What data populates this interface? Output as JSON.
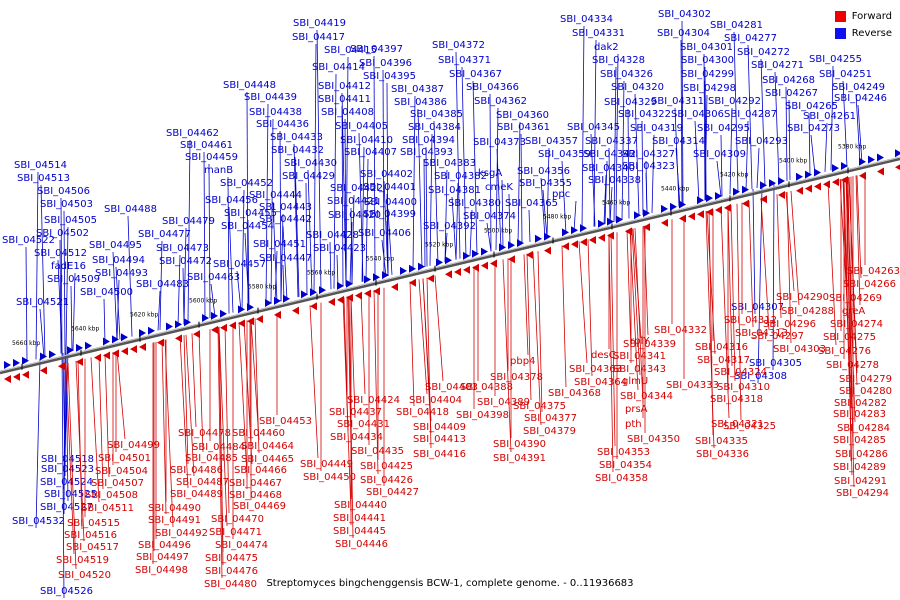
{
  "caption": "Streptomyces bingchenggensis BCW-1, complete genome. - 0..11936683",
  "legend": [
    {
      "label": "Forward",
      "color": "#ee0000"
    },
    {
      "label": "Reverse",
      "color": "#1010ee"
    }
  ],
  "colors": {
    "forward": "#d40000",
    "reverse": "#0000cc",
    "track": "#888888"
  },
  "axis": {
    "unit": "kbp",
    "ticks": [
      "5660 kbp",
      "5640 kbp",
      "5620 kbp",
      "5600 kbp",
      "5580 kbp",
      "5560 kbp",
      "5540 kbp",
      "5520 kbp",
      "5500 kbp",
      "5480 kbp",
      "5460 kbp",
      "5440 kbp",
      "5420 kbp",
      "5400 kbp",
      "5380 kbp"
    ]
  },
  "reverse_labels": [
    "SBI_04334",
    "SBI_04302",
    "SBI_04419",
    "SBI_04331",
    "SBI_04304",
    "SBI_04281",
    "SBI_04417",
    "SBI_04397",
    "SBI_04372",
    "dak2",
    "SBI_04301",
    "SBI_04277",
    "SBI_04415",
    "SBI_04396",
    "SBI_04371",
    "SBI_04328",
    "SBI_04300",
    "SBI_04272",
    "SBI_04414",
    "SBI_04395",
    "SBI_04367",
    "SBI_04326",
    "SBI_04299",
    "SBI_04271",
    "SBI_04255",
    "SBI_04448",
    "SBI_04412",
    "SBI_04387",
    "SBI_04366",
    "SBI_04320",
    "SBI_04298",
    "SBI_04268",
    "SBI_04251",
    "SBI_04439",
    "SBI_04411",
    "SBI_04386",
    "SBI_04362",
    "SBI_04329",
    "SBI_04311",
    "SBI_04292",
    "SBI_04267",
    "SBI_04249",
    "SBI_04438",
    "SBI_04408",
    "SBI_04385",
    "SBI_04360",
    "SBI_04322",
    "SBI_04306",
    "SBI_04287",
    "SBI_04265",
    "SBI_04246",
    "SBI_04462",
    "SBI_04436",
    "SBI_04405",
    "SBI_04384",
    "SBI_04361",
    "SBI_04345",
    "SBI_04319",
    "SBI_04295",
    "SBI_04273",
    "SBI_04261",
    "SBI_04461",
    "SBI_04433",
    "SBI_04410",
    "SBI_04394",
    "SBI_04373",
    "SBI_04357",
    "SBI_04337",
    "SBI_04314",
    "SBI_04293",
    "SBI_04459",
    "SBI_04432",
    "SBI_04407",
    "SBI_04393",
    "SBI_04359",
    "SBI_04342",
    "SBI_04327",
    "SBI_04309",
    "SBI_04514",
    "manB",
    "SBI_04430",
    "SBI_04383",
    "ksgA",
    "SBI_04356",
    "SBI_04340",
    "SBI_04323",
    "SBI_04513",
    "SBI_04452",
    "SBI_04429",
    "SBI_04402",
    "SBI_04382",
    "cmeK",
    "SBI_04355",
    "SBI_04338",
    "SBI_04506",
    "SBI_04444",
    "SBI_04422",
    "SBI_04401",
    "SBI_04381",
    "ppc",
    "SBI_04503",
    "SBI_04456",
    "SBI_04443",
    "SBI_04421",
    "SBI_04400",
    "SBI_04380",
    "SBI_04365",
    "SBI_04488",
    "SBI_04505",
    "SBI_04455",
    "SBI_04442",
    "SBI_04420",
    "SBI_04399",
    "SBI_04374",
    "SBI_04479",
    "SBI_04502",
    "SBI_04454",
    "SBI_04477",
    "SBI_04428",
    "SBI_04406",
    "SBI_04392",
    "SBI_04522",
    "SBI_04495",
    "SBI_04451",
    "SBI_04423",
    "SBI_04512",
    "SBI_04473",
    "SBI_04447",
    "SBI_04494",
    "fadE16",
    "SBI_04472",
    "SBI_04457",
    "SBI_04493",
    "SBI_04509",
    "SBI_04463",
    "SBI_04483",
    "SBI_04500",
    "SBI_04521",
    "SBI_04307",
    "SBI_04305",
    "SBI_04308",
    "SBI_04518",
    "SBI_04523",
    "SBI_04524",
    "SBI_04525",
    "SBI_04527",
    "SBI_04532",
    "SBI_04526"
  ],
  "forward_labels": [
    "SBI_04263",
    "SBI_04266",
    "SBI_04290",
    "SBI_04269",
    "greA",
    "SBI_04288",
    "SBI_04312",
    "SBI_04296",
    "SBI_04274",
    "SBI_04332",
    "SBI_04313",
    "SBI_04297",
    "SBI_04275",
    "rplY",
    "SBI_04339",
    "SBI_04316",
    "SBI_04303",
    "SBI_04276",
    "desC",
    "SBI_04341",
    "SBI_04317",
    "SBI_04278",
    "pbp4",
    "SBI_04363",
    "SBI_04343",
    "SBI_04324",
    "SBI_04279",
    "SBI_04378",
    "SBI_04364",
    "glmU",
    "SBI_04333",
    "SBI_04310",
    "SBI_04280",
    "SBI_04388",
    "SBI_04368",
    "SBI_04344",
    "SBI_04318",
    "SBI_04282",
    "SBI_04403",
    "SBI_04389",
    "SBI_04375",
    "prsA",
    "SBI_04283",
    "SBI_04424",
    "SBI_04404",
    "SBI_04398",
    "SBI_04377",
    "SBI_04321",
    "SBI_04437",
    "SBI_04418",
    "SBI_04379",
    "pth",
    "SBI_04325",
    "SBI_04284",
    "SBI_04453",
    "SBI_04431",
    "SBI_04409",
    "SBI_04350",
    "SBI_04335",
    "SBI_04285",
    "SBI_04460",
    "SBI_04434",
    "SBI_04413",
    "SBI_04390",
    "SBI_04353",
    "SBI_04336",
    "SBI_04286",
    "SBI_04478",
    "SBI_04464",
    "SBI_04435",
    "SBI_04416",
    "SBI_04391",
    "SBI_04354",
    "SBI_04289",
    "SBI_04499",
    "SBI_04484",
    "SBI_04465",
    "SBI_04449",
    "SBI_04425",
    "SBI_04358",
    "SBI_04291",
    "SBI_04501",
    "SBI_04485",
    "SBI_04466",
    "SBI_04450",
    "SBI_04426",
    "SBI_04294",
    "SBI_04504",
    "SBI_04486",
    "SBI_04467",
    "SBI_04427",
    "SBI_04507",
    "SBI_04487",
    "SBI_04468",
    "SBI_04508",
    "SBI_04489",
    "SBI_04469",
    "SBI_04440",
    "SBI_04511",
    "SBI_04490",
    "SBI_04470",
    "SBI_04441",
    "SBI_04515",
    "SBI_04491",
    "SBI_04471",
    "SBI_04445",
    "SBI_04516",
    "SBI_04492",
    "SBI_04474",
    "SBI_04446",
    "SBI_04517",
    "SBI_04496",
    "SBI_04475",
    "SBI_04519",
    "SBI_04497",
    "SBI_04476",
    "SBI_04520",
    "SBI_04498",
    "SBI_04480"
  ]
}
